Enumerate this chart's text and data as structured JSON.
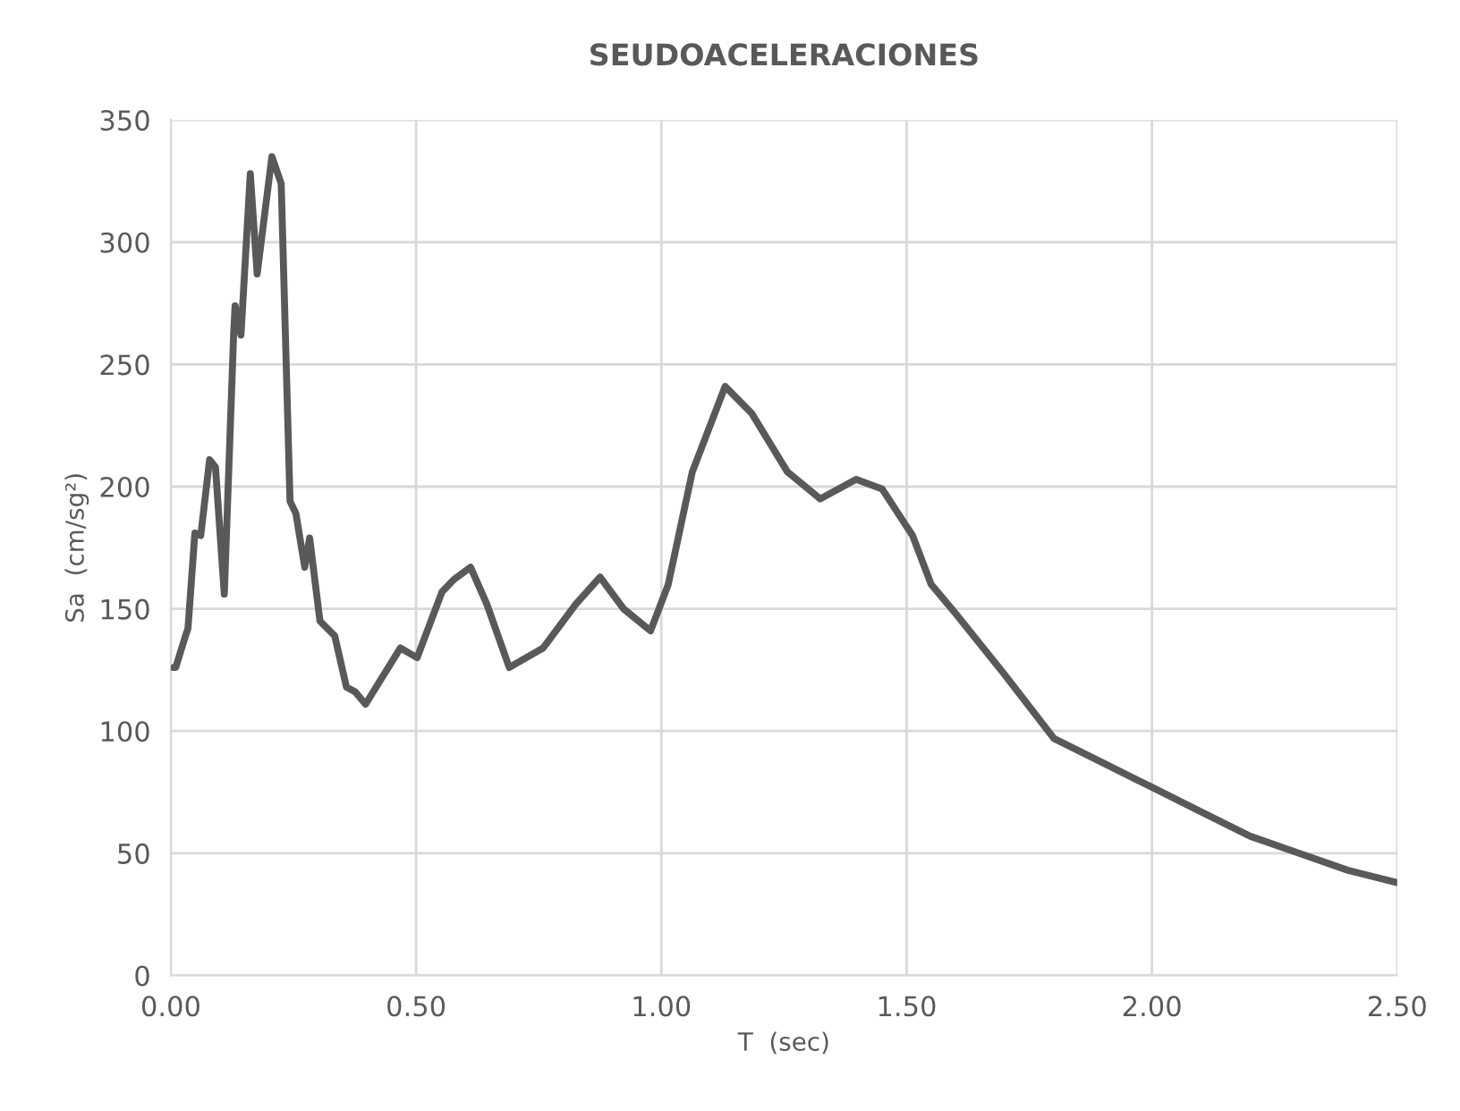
{
  "chart_data": {
    "type": "line",
    "title": "SEUDOACELERACIONES",
    "xlabel": "T  (sec)",
    "ylabel": "Sa  (cm/sg²)",
    "xlim": [
      0,
      2.5
    ],
    "ylim": [
      0,
      350
    ],
    "xticks": [
      {
        "value": 0,
        "label": "0.00"
      },
      {
        "value": 0.5,
        "label": "0.50"
      },
      {
        "value": 1.0,
        "label": "1.00"
      },
      {
        "value": 1.5,
        "label": "1.50"
      },
      {
        "value": 2.0,
        "label": "2.00"
      },
      {
        "value": 2.5,
        "label": "2.50"
      }
    ],
    "yticks": [
      0,
      50,
      100,
      150,
      200,
      250,
      300,
      350
    ],
    "grid": true,
    "legend": false,
    "marker": "none",
    "line_style": "solid",
    "series": [
      {
        "color": "#595959",
        "x": [
          0.006,
          0.01,
          0.03,
          0.035,
          0.049,
          0.061,
          0.079,
          0.091,
          0.109,
          0.128,
          0.131,
          0.143,
          0.162,
          0.176,
          0.206,
          0.225,
          0.243,
          0.255,
          0.273,
          0.283,
          0.304,
          0.334,
          0.358,
          0.376,
          0.397,
          0.468,
          0.502,
          0.553,
          0.577,
          0.611,
          0.644,
          0.69,
          0.759,
          0.826,
          0.875,
          0.923,
          0.978,
          1.014,
          1.063,
          1.13,
          1.184,
          1.257,
          1.324,
          1.397,
          1.45,
          1.512,
          1.55,
          1.6,
          1.7,
          1.8,
          1.9,
          2.0,
          2.1,
          2.2,
          2.3,
          2.4,
          2.5
        ],
        "values": [
          126,
          126,
          139,
          142,
          181,
          180,
          211,
          208,
          156,
          262,
          274,
          262,
          328,
          287,
          335,
          324,
          194,
          189,
          167,
          179,
          145,
          139,
          118,
          116,
          111,
          134,
          130,
          157,
          162,
          167,
          152,
          126,
          134,
          152,
          163,
          150,
          141,
          160,
          206,
          241,
          230,
          206,
          195,
          203,
          199,
          180,
          160,
          148,
          123,
          97,
          87,
          77,
          67,
          57,
          50,
          43,
          38
        ]
      }
    ]
  }
}
